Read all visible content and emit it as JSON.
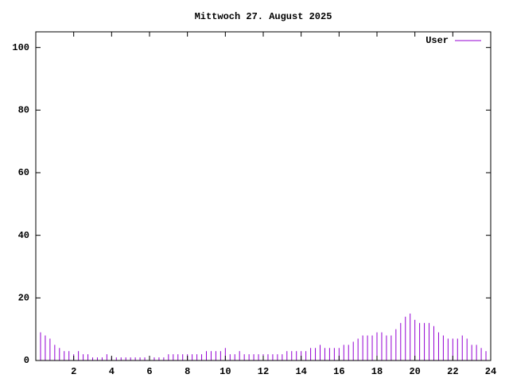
{
  "chart_data": {
    "type": "impulses",
    "title": "Mittwoch 27. August 2025",
    "x": [
      0,
      0.25,
      0.5,
      0.75,
      1,
      1.25,
      1.5,
      1.75,
      2,
      2.25,
      2.5,
      2.75,
      3,
      3.25,
      3.5,
      3.75,
      4,
      4.25,
      4.5,
      4.75,
      5,
      5.25,
      5.5,
      5.75,
      6,
      6.25,
      6.5,
      6.75,
      7,
      7.25,
      7.5,
      7.75,
      8,
      8.25,
      8.5,
      8.75,
      9,
      9.25,
      9.5,
      9.75,
      10,
      10.25,
      10.5,
      10.75,
      11,
      11.25,
      11.5,
      11.75,
      12,
      12.25,
      12.5,
      12.75,
      13,
      13.25,
      13.5,
      13.75,
      14,
      14.25,
      14.5,
      14.75,
      15,
      15.25,
      15.5,
      15.75,
      16,
      16.25,
      16.5,
      16.75,
      17,
      17.25,
      17.5,
      17.75,
      18,
      18.25,
      18.5,
      18.75,
      19,
      19.25,
      19.5,
      19.75,
      20,
      20.25,
      20.5,
      20.75,
      21,
      21.25,
      21.5,
      21.75,
      22,
      22.25,
      22.5,
      22.75,
      23,
      23.25,
      23.5,
      23.75
    ],
    "series": [
      {
        "name": "User",
        "color": "#9400d3",
        "values": [
          10,
          9,
          8,
          7,
          5,
          4,
          3,
          3,
          2,
          3,
          2,
          2,
          1,
          1,
          1,
          2,
          1,
          1,
          1,
          1,
          1,
          1,
          1,
          1,
          1,
          1,
          1,
          1,
          2,
          2,
          2,
          2,
          2,
          2,
          2,
          2,
          3,
          3,
          3,
          3,
          4,
          2,
          2,
          3,
          2,
          2,
          2,
          2,
          2,
          2,
          2,
          2,
          2,
          3,
          3,
          3,
          3,
          3,
          4,
          4,
          5,
          4,
          4,
          4,
          4,
          5,
          5,
          6,
          7,
          8,
          8,
          8,
          9,
          9,
          8,
          8,
          10,
          12,
          14,
          15,
          13,
          12,
          12,
          12,
          11,
          9,
          8,
          7,
          7,
          7,
          8,
          7,
          5,
          5,
          4,
          3
        ]
      }
    ],
    "xlim": [
      0,
      24
    ],
    "xticks": [
      2,
      4,
      6,
      8,
      10,
      12,
      14,
      16,
      18,
      20,
      22,
      24
    ],
    "ylim": [
      0,
      105
    ],
    "yticks": [
      0,
      20,
      40,
      60,
      80,
      100
    ],
    "legend": "top-right"
  }
}
